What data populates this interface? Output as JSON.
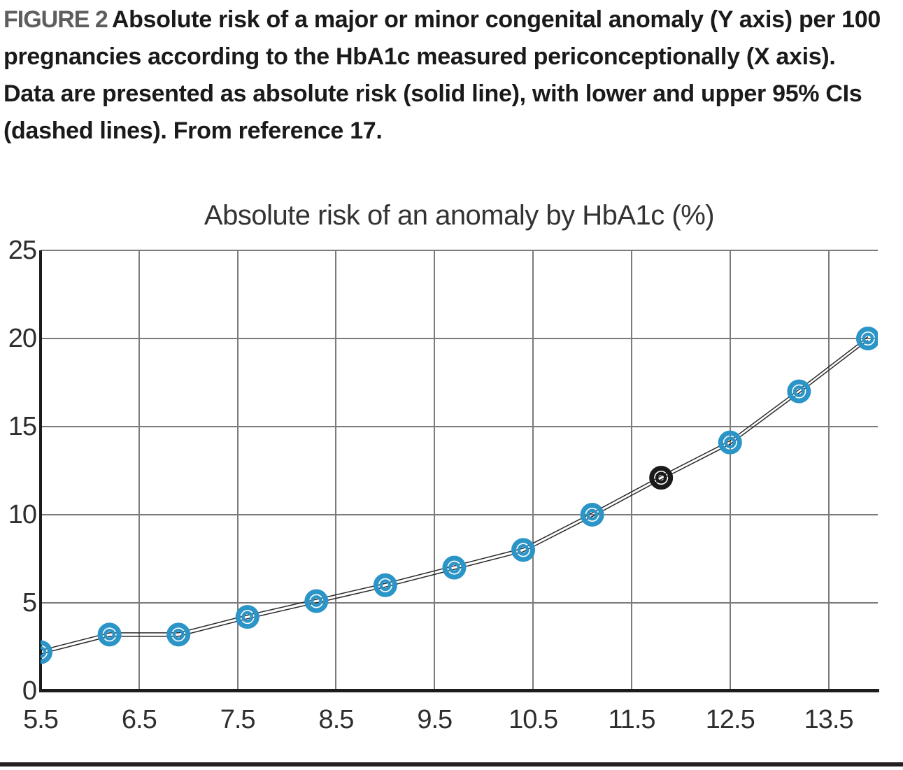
{
  "figure": {
    "label": "FIGURE 2",
    "caption": "Absolute risk of a major or minor congenital anomaly (Y axis) per 100 pregnancies according to the HbA1c measured periconceptionally (X axis). Data are presented as absolute risk (solid line), with lower and upper 95% CIs (dashed lines). From reference 17."
  },
  "chart_data": {
    "type": "line",
    "title": "Absolute risk of an anomaly by HbA1c (%)",
    "xlabel": "",
    "ylabel": "",
    "x": [
      5.5,
      6.2,
      6.9,
      7.6,
      8.3,
      9.0,
      9.7,
      10.4,
      11.1,
      11.8,
      12.5,
      13.2,
      13.9
    ],
    "series": [
      {
        "name": "Absolute risk",
        "values": [
          2.2,
          3.2,
          3.2,
          4.2,
          5.1,
          6.0,
          7.0,
          8.0,
          10.0,
          12.1,
          14.1,
          17.0,
          20.0
        ]
      },
      {
        "name": "Lower 95% CI",
        "values": [
          2.1,
          3.1,
          3.1,
          4.1,
          5.0,
          5.9,
          6.9,
          7.9,
          9.9,
          12.0,
          14.0,
          16.9,
          19.9
        ]
      },
      {
        "name": "Upper 95% CI",
        "values": [
          2.3,
          3.3,
          3.3,
          4.3,
          5.2,
          6.1,
          7.1,
          8.1,
          10.1,
          12.2,
          14.2,
          17.1,
          20.1
        ]
      }
    ],
    "x_ticks": [
      5.5,
      6.5,
      7.5,
      8.5,
      9.5,
      10.5,
      11.5,
      12.5,
      13.5
    ],
    "y_ticks": [
      0,
      5,
      10,
      15,
      20,
      25
    ],
    "xlim": [
      5.5,
      14.0
    ],
    "ylim": [
      0,
      25
    ],
    "grid": true,
    "legend": "none",
    "marker": "double-circle",
    "highlight_point": {
      "x": 11.8,
      "y": 12.1
    }
  },
  "colors": {
    "marker_blue": "#2b95c8",
    "marker_black": "#1a1a1a",
    "line": "#2b2b2b",
    "gridline": "#7b7b7b",
    "axis": "#1c1c1c",
    "figure_label_gray": "#5e5e5e",
    "caption_black": "#1a1a1a",
    "bottom_rule": "#231f20"
  }
}
